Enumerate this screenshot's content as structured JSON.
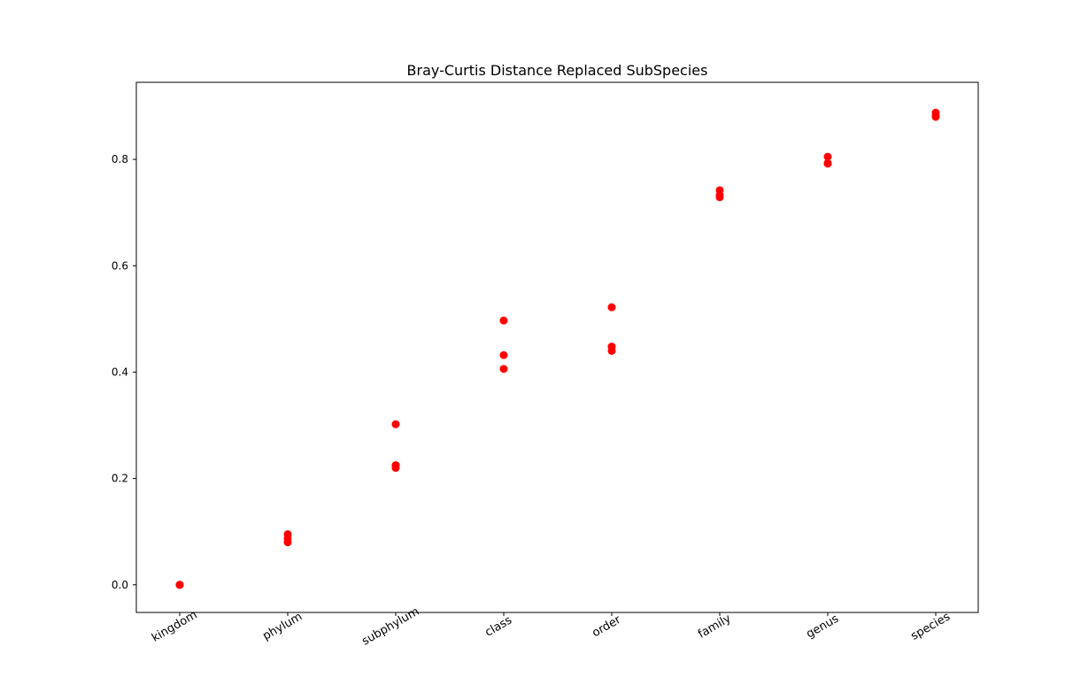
{
  "chart_data": {
    "type": "scatter",
    "title": "Bray-Curtis Distance Replaced SubSpecies",
    "xlabel": "",
    "ylabel": "",
    "categories": [
      "kingdom",
      "phylum",
      "subphylum",
      "class",
      "order",
      "family",
      "genus",
      "species"
    ],
    "ylim": [
      -0.052,
      0.945
    ],
    "yticks": [
      0.0,
      0.2,
      0.4,
      0.6,
      0.8
    ],
    "ytick_labels": [
      "0.0",
      "0.2",
      "0.4",
      "0.6",
      "0.8"
    ],
    "grid": false,
    "legend": "none",
    "marker_color": "#ff0000",
    "points": [
      {
        "x": "kingdom",
        "y": 0.0
      },
      {
        "x": "kingdom",
        "y": 0.0
      },
      {
        "x": "kingdom",
        "y": 0.0
      },
      {
        "x": "phylum",
        "y": 0.095
      },
      {
        "x": "phylum",
        "y": 0.087
      },
      {
        "x": "phylum",
        "y": 0.08
      },
      {
        "x": "subphylum",
        "y": 0.302
      },
      {
        "x": "subphylum",
        "y": 0.225
      },
      {
        "x": "subphylum",
        "y": 0.22
      },
      {
        "x": "class",
        "y": 0.497
      },
      {
        "x": "class",
        "y": 0.432
      },
      {
        "x": "class",
        "y": 0.406
      },
      {
        "x": "order",
        "y": 0.522
      },
      {
        "x": "order",
        "y": 0.448
      },
      {
        "x": "order",
        "y": 0.44
      },
      {
        "x": "family",
        "y": 0.742
      },
      {
        "x": "family",
        "y": 0.733
      },
      {
        "x": "family",
        "y": 0.729
      },
      {
        "x": "genus",
        "y": 0.805
      },
      {
        "x": "genus",
        "y": 0.793
      },
      {
        "x": "genus",
        "y": 0.792
      },
      {
        "x": "species",
        "y": 0.888
      },
      {
        "x": "species",
        "y": 0.882
      },
      {
        "x": "species",
        "y": 0.88
      }
    ]
  }
}
